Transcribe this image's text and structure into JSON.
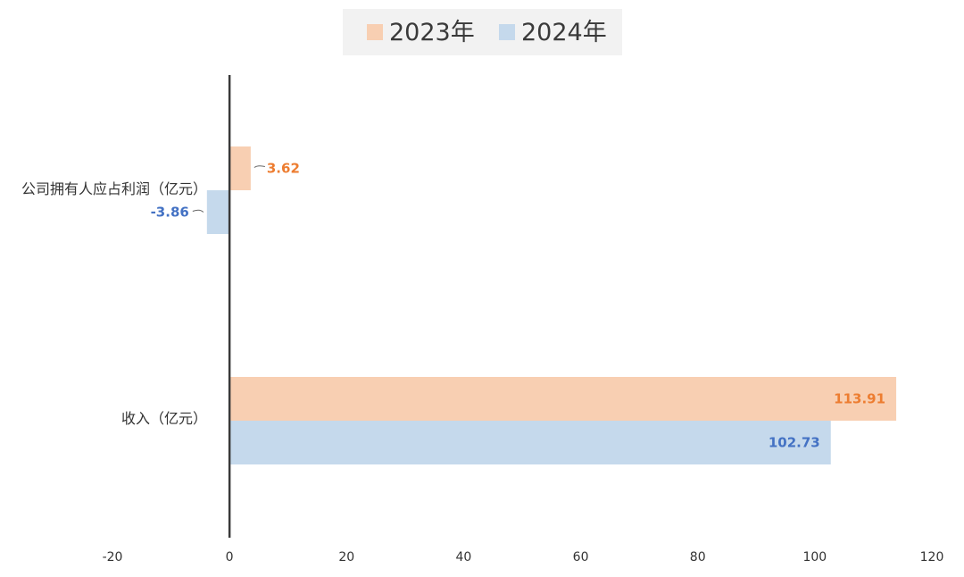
{
  "chart_data": {
    "type": "bar",
    "orientation": "horizontal",
    "categories": [
      "公司拥有人应占利润（亿元）",
      "收入（亿元）"
    ],
    "series": [
      {
        "name": "2023年",
        "values": [
          3.62,
          113.91
        ],
        "color": "#f8cfb2",
        "label_color": "#ed7d31"
      },
      {
        "name": "2024年",
        "values": [
          -3.86,
          102.73
        ],
        "color": "#c5d9ec",
        "label_color": "#4472c4"
      }
    ],
    "data_labels": [
      [
        "3.62",
        "113.91"
      ],
      [
        "-3.86",
        "102.73"
      ]
    ],
    "xlim": [
      -20,
      120
    ],
    "xticks": [
      -20,
      0,
      20,
      40,
      60,
      80,
      100,
      120
    ],
    "xtick_labels": [
      "-20",
      "0",
      "20",
      "40",
      "60",
      "80",
      "100",
      "120"
    ],
    "title": "",
    "xlabel": "",
    "ylabel": "",
    "grid": false,
    "legend_position": "top-center",
    "axis_color": "#3a3a3a"
  }
}
